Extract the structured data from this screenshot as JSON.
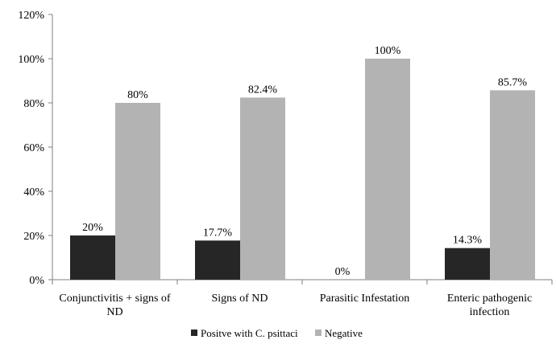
{
  "chart_data": {
    "type": "bar",
    "title": "",
    "xlabel": "",
    "ylabel": "",
    "ylim": [
      0,
      120
    ],
    "yticks": [
      0,
      20,
      40,
      60,
      80,
      100,
      120
    ],
    "ytick_labels": [
      "0%",
      "20%",
      "40%",
      "60%",
      "80%",
      "100%",
      "120%"
    ],
    "categories": [
      [
        "Conjunctivitis + signs of",
        "ND"
      ],
      [
        "Signs of ND"
      ],
      [
        "Parasitic Infestation"
      ],
      [
        "Enteric pathogenic",
        "infection"
      ]
    ],
    "series": [
      {
        "name": "Positve with C. psittaci",
        "color": "#262626",
        "values": [
          20,
          17.7,
          0,
          14.3
        ],
        "labels": [
          "20%",
          "17.7%",
          "0%",
          "14.3%"
        ]
      },
      {
        "name": "Negative",
        "color": "#b3b3b3",
        "values": [
          80,
          82.4,
          100,
          85.7
        ],
        "labels": [
          "80%",
          "82.4%",
          "100%",
          "85.7%"
        ]
      }
    ],
    "grid": false,
    "legend_position": "bottom"
  }
}
